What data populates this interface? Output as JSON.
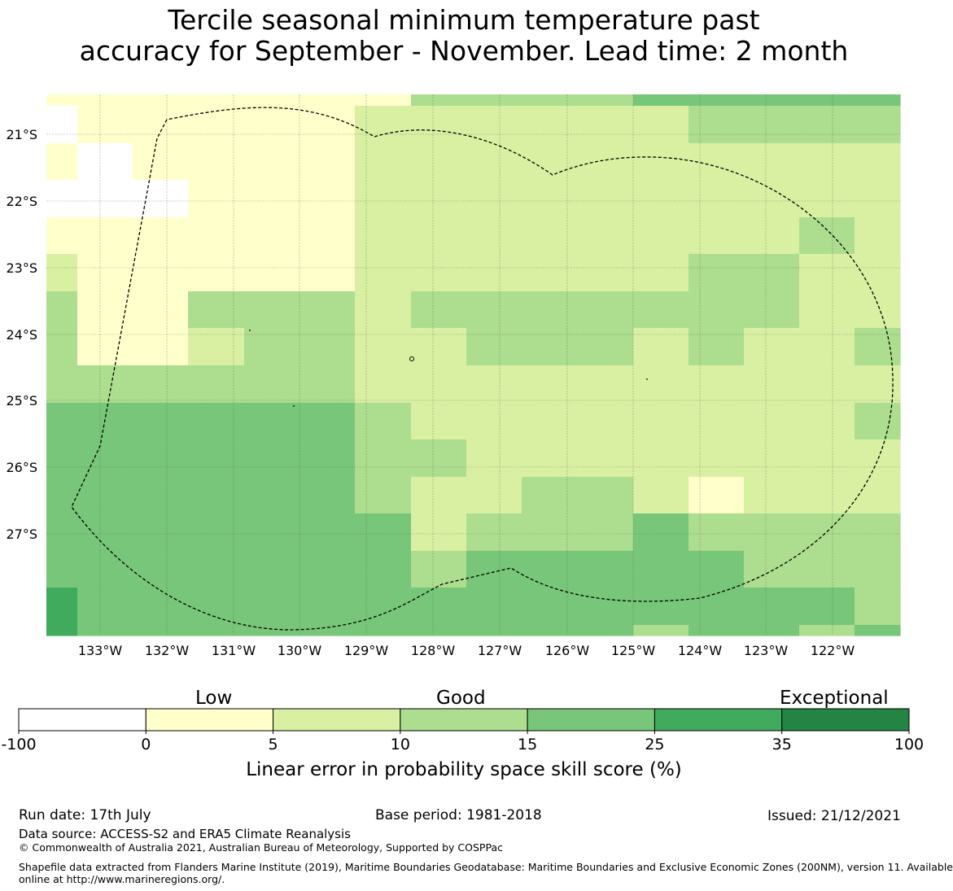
{
  "title": {
    "line1": "Tercile seasonal minimum temperature past",
    "line2": "accuracy for September - November. Lead time: 2 month"
  },
  "map": {
    "lat_labels": [
      "21°S",
      "22°S",
      "23°S",
      "24°S",
      "25°S",
      "26°S",
      "27°S"
    ],
    "lon_labels": [
      "133°W",
      "132°W",
      "131°W",
      "130°W",
      "129°W",
      "128°W",
      "127°W",
      "126°W",
      "125°W",
      "124°W",
      "123°W",
      "122°W"
    ],
    "cell_levels": [
      "1111111333344444",
      "0111112222223333",
      "1011112222222222",
      "0001112222222222",
      "1111112222222232",
      "2111112222223322",
      "3113332333333322",
      "3112332233323223",
      "3333332222222222",
      "4444443222222223",
      "4444443322222222",
      "4444443223321222",
      "4444444233343333",
      "4444444344444333",
      "5444444444444443",
      "5444444444434434"
    ],
    "legend": [
      {
        "lo": -100,
        "hi": 0,
        "color": "#ffffff"
      },
      {
        "lo": 0,
        "hi": 5,
        "color": "#ffffcc"
      },
      {
        "lo": 5,
        "hi": 10,
        "color": "#d9f0a3"
      },
      {
        "lo": 10,
        "hi": 15,
        "color": "#addd8e"
      },
      {
        "lo": 15,
        "hi": 25,
        "color": "#78c679"
      },
      {
        "lo": 25,
        "hi": 35,
        "color": "#41ab5d"
      },
      {
        "lo": 35,
        "hi": 100,
        "color": "#238443"
      }
    ]
  },
  "colorbar": {
    "category_labels": [
      "Low",
      "Good",
      "Exceptional"
    ],
    "tick_labels": [
      "-100",
      "0",
      "5",
      "10",
      "15",
      "25",
      "35",
      "100"
    ],
    "title": "Linear error in probability space skill score (%)"
  },
  "footer": {
    "run_date": "Run date: 17th July",
    "base_period": "Base period: 1981-2018",
    "issued": "Issued: 21/12/2021",
    "data_source": "Data source: ACCESS-S2 and ERA5 Climate Reanalysis",
    "copyright": "© Commonwealth of Australia 2021, Australian Bureau of Meteorology, Supported by COSPPac",
    "shapefile_line1": "Shapefile data extracted from Flanders Marine Institute (2019), Maritime Boundaries Geodatabase: Maritime Boundaries and Exclusive Economic Zones (200NM), version 11. Available",
    "shapefile_line2": "online at http://www.marineregions.org/."
  }
}
